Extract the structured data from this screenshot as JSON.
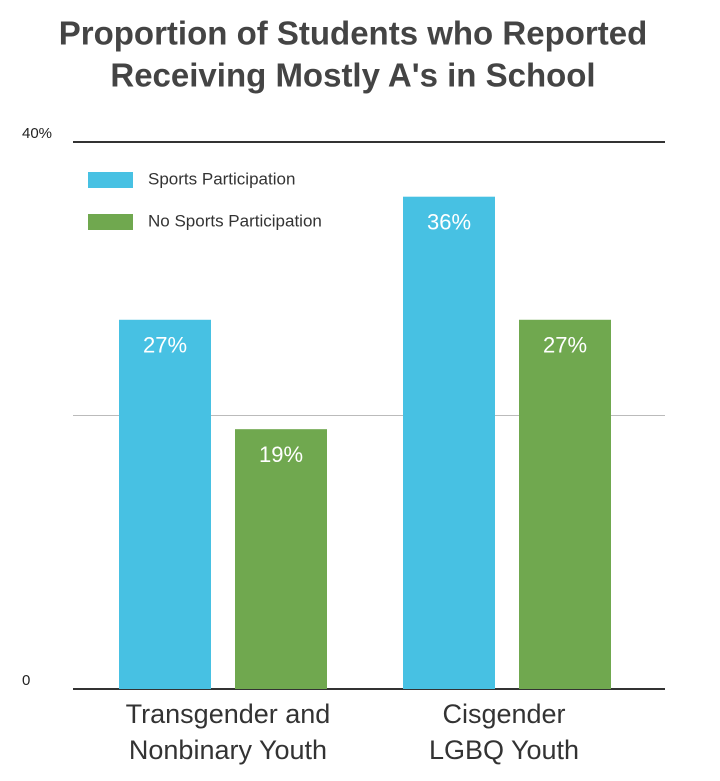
{
  "chart_data": {
    "type": "bar",
    "title": [
      "Proportion of Students who Reported",
      "Receiving Mostly A's in School"
    ],
    "categories": [
      [
        "Transgender and",
        "Nonbinary Youth"
      ],
      [
        "Cisgender",
        "LGBQ Youth"
      ]
    ],
    "series": [
      {
        "name": "Sports Participation",
        "color": "#47c1e3",
        "values": [
          27,
          36
        ],
        "value_labels": [
          "27%",
          "36%"
        ]
      },
      {
        "name": "No Sports Participation",
        "color": "#70a84f",
        "values": [
          19,
          27
        ],
        "value_labels": [
          "19%",
          "27%"
        ]
      }
    ],
    "ylim": [
      0,
      40
    ],
    "yticks": [
      0,
      {
        "value": 40,
        "label": "40%"
      }
    ],
    "grid_values": [
      20
    ],
    "legend": "upper left"
  }
}
